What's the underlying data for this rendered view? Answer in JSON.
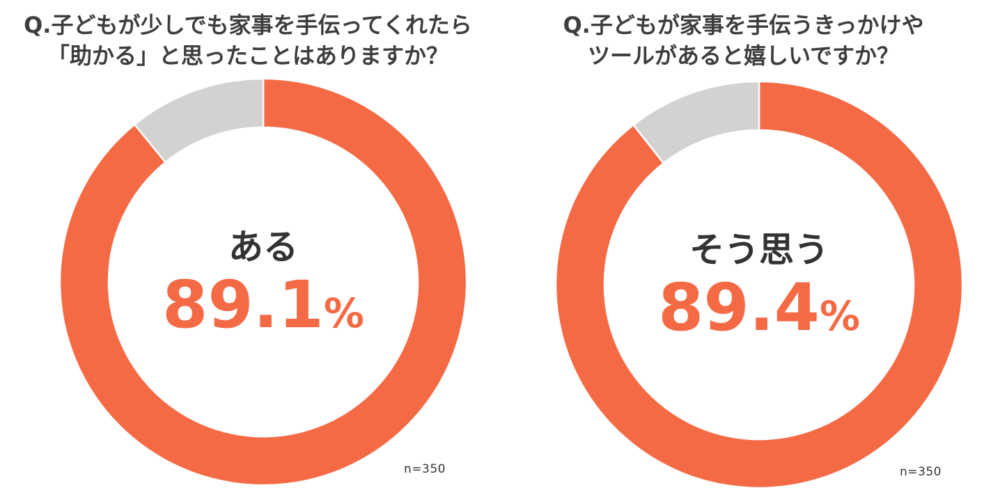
{
  "colors": {
    "primary": "#f46a45",
    "secondary": "#d3d2d0",
    "title_text": "#3d3d3d",
    "center_text": "#333333"
  },
  "chart_data": [
    {
      "type": "pie",
      "variant": "donut",
      "title_lines": [
        "Q.子どもが少しでも家事を手伝ってくれたら",
        "「助かる」と思ったことはありますか？"
      ],
      "center_label": "ある",
      "center_value": "89.1",
      "center_unit": "%",
      "sample": "n=350",
      "slices": [
        {
          "label": "ある",
          "value": 89.1,
          "color": "#f46a45"
        },
        {
          "label": "",
          "value": 10.9,
          "color": "#d3d2d0"
        }
      ]
    },
    {
      "type": "pie",
      "variant": "donut",
      "title_lines": [
        "Q.子どもが家事を手伝うきっかけや",
        "ツールがあると嬉しいですか？"
      ],
      "center_label": "そう思う",
      "center_value": "89.4",
      "center_unit": "%",
      "sample": "n=350",
      "slices": [
        {
          "label": "そう思う",
          "value": 89.4,
          "color": "#f46a45"
        },
        {
          "label": "",
          "value": 10.6,
          "color": "#d3d2d0"
        }
      ]
    }
  ]
}
